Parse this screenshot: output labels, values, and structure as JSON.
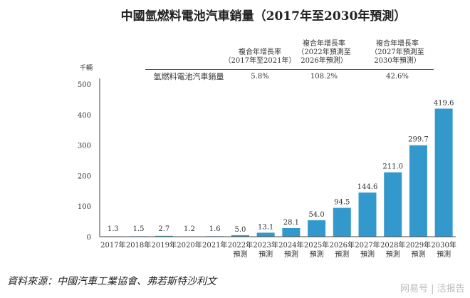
{
  "chart_data": {
    "type": "bar",
    "title": "中國氫燃料電池汽車銷量（2017年至2030年預測）",
    "ylabel": "千輛",
    "ylim": [
      0,
      500
    ],
    "yticks": [
      0,
      100,
      200,
      300,
      400,
      500
    ],
    "categories": [
      "2017年",
      "2018年",
      "2019年",
      "2020年",
      "2021年",
      "2022年\n預測",
      "2023年\n預測",
      "2024年\n預測",
      "2025年\n預測",
      "2026年\n預測",
      "2027年\n預測",
      "2028年\n預測",
      "2029年\n預測",
      "2030年\n預測"
    ],
    "values": [
      1.3,
      1.5,
      2.7,
      1.2,
      1.6,
      5.0,
      13.1,
      28.1,
      54.0,
      94.5,
      144.6,
      211.0,
      299.7,
      419.6
    ],
    "value_labels": [
      "1.3",
      "1.5",
      "2.7",
      "1.2",
      "1.6",
      "5.0",
      "13.1",
      "28.1",
      "54.0",
      "94.5",
      "144.6",
      "211.0",
      "299.7",
      "419.6"
    ],
    "bar_color": "#3399cc",
    "grid": false
  },
  "cagr_table": {
    "row_label": "氫燃料電池汽車銷量",
    "columns": [
      {
        "header": [
          "複合年增長率",
          "（2017年至2021年）"
        ],
        "value": "5.8%"
      },
      {
        "header": [
          "複合年增長率",
          "（2022年預測至",
          "2026年預測）"
        ],
        "value": "108.2%"
      },
      {
        "header": [
          "複合年增長率",
          "（2027年預測至",
          "2030年預測）"
        ],
        "value": "42.6%"
      }
    ]
  },
  "source": "資料來源：中國汽車工業協會、弗若斯特沙利文",
  "watermark": "网易号 | 活报告"
}
